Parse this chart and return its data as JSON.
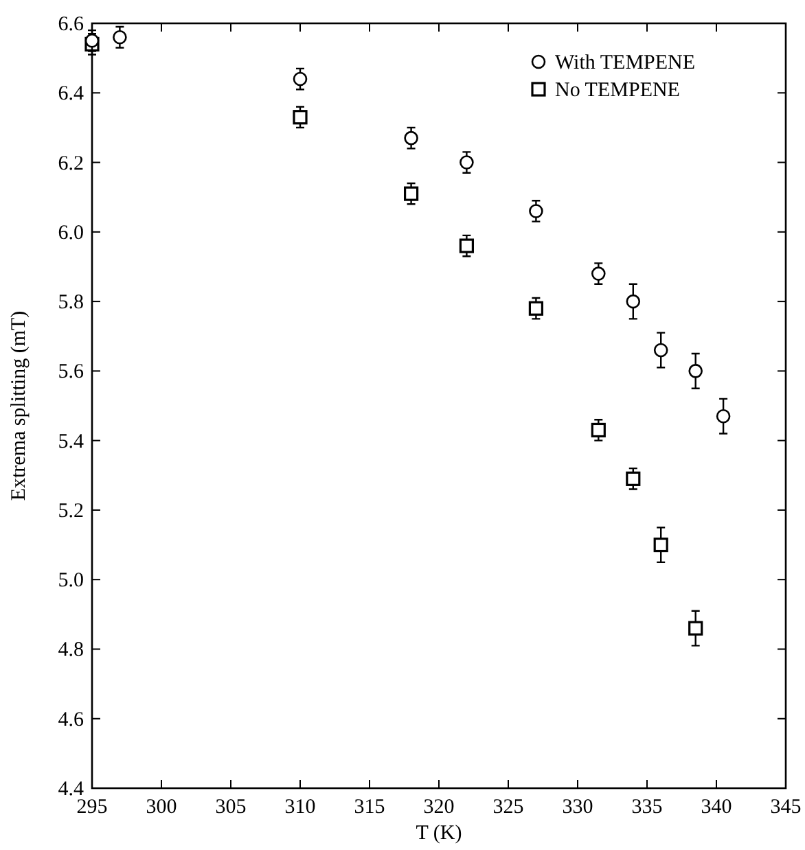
{
  "chart_data": {
    "type": "scatter",
    "xlabel": "T (K)",
    "ylabel": "Extrema splitting (mT)",
    "xlim": [
      295,
      345
    ],
    "xticks": [
      295,
      300,
      305,
      310,
      315,
      320,
      325,
      330,
      335,
      340,
      345
    ],
    "ylim": [
      4.4,
      6.6
    ],
    "yticks": [
      {
        "value": 4.4,
        "label": "4.4"
      },
      {
        "value": 4.6,
        "label": "4.6"
      },
      {
        "value": 4.8,
        "label": "4.8"
      },
      {
        "value": 5.0,
        "label": "5.0"
      },
      {
        "value": 5.2,
        "label": "5.2"
      },
      {
        "value": 5.4,
        "label": "5.4"
      },
      {
        "value": 5.6,
        "label": "5.6"
      },
      {
        "value": 5.8,
        "label": "5.8"
      },
      {
        "value": 6.0,
        "label": "6.0"
      },
      {
        "value": 6.2,
        "label": "6.2"
      },
      {
        "value": 6.4,
        "label": "6.4"
      },
      {
        "value": 6.6,
        "label": "6.6"
      }
    ],
    "grid": false,
    "legend": "top right",
    "series": [
      {
        "name": "With TEMPENE",
        "color": "#000000",
        "marker": "circle",
        "x": [
          295,
          297,
          310,
          318,
          322,
          327,
          331.5,
          334,
          336,
          338.5,
          340.5
        ],
        "values": [
          6.55,
          6.56,
          6.44,
          6.27,
          6.2,
          6.06,
          5.88,
          5.8,
          5.66,
          5.6,
          5.47
        ],
        "errors": [
          0.03,
          0.03,
          0.03,
          0.03,
          0.03,
          0.03,
          0.03,
          0.05,
          0.05,
          0.05,
          0.05
        ]
      },
      {
        "name": "No TEMPENE",
        "color": "#000000",
        "marker": "square",
        "x": [
          295,
          310,
          318,
          322,
          327,
          331.5,
          334,
          336,
          338.5
        ],
        "values": [
          6.54,
          6.33,
          6.11,
          5.96,
          5.78,
          5.43,
          5.29,
          5.1,
          4.86
        ],
        "errors": [
          0.03,
          0.03,
          0.03,
          0.03,
          0.03,
          0.03,
          0.03,
          0.05,
          0.05
        ]
      }
    ]
  }
}
